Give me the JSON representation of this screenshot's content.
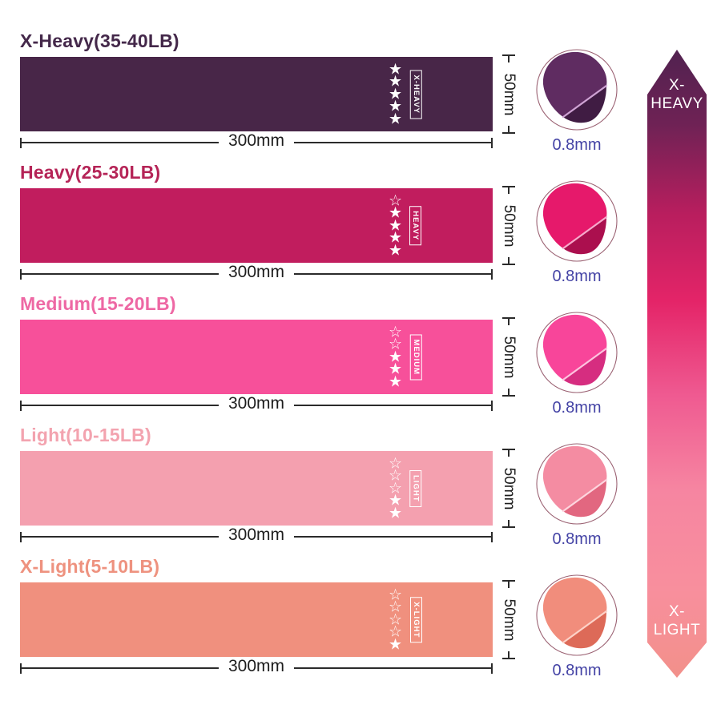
{
  "figure": {
    "background": "#ffffff",
    "dimension_label": "300mm",
    "height_label": "50mm",
    "thickness_label": "0.8mm",
    "line_color": "#2b2b2b",
    "thickness_label_color": "#4443a5"
  },
  "rows": [
    {
      "title": "X-Heavy(35-40LB)",
      "tag": "X-HEAVY",
      "stars_filled": 5,
      "stars_total": 5,
      "band_color": "#482648",
      "title_color": "#44284a",
      "circle": {
        "main": "#5f2c61",
        "shadow": "#401c43",
        "edge": "#cfa3d4"
      }
    },
    {
      "title": "Heavy(25-30LB)",
      "tag": "HEAVY",
      "stars_filled": 4,
      "stars_total": 5,
      "band_color": "#c11d5e",
      "title_color": "#b52457",
      "circle": {
        "main": "#e6196b",
        "shadow": "#ab0f4e",
        "edge": "#f6aacb"
      }
    },
    {
      "title": "Medium(15-20LB)",
      "tag": "MEDIUM",
      "stars_filled": 3,
      "stars_total": 5,
      "band_color": "#f7509a",
      "title_color": "#ee68a4",
      "circle": {
        "main": "#f8459a",
        "shadow": "#d62d80",
        "edge": "#fdc3de"
      }
    },
    {
      "title": "Light(10-15LB)",
      "tag": "LIGHT",
      "stars_filled": 2,
      "stars_total": 5,
      "band_color": "#f4a0af",
      "title_color": "#f3a3af",
      "circle": {
        "main": "#f48ca2",
        "shadow": "#e26780",
        "edge": "#fdd5de"
      }
    },
    {
      "title": "X-Light(5-10LB)",
      "tag": "X-LIGHT",
      "stars_filled": 1,
      "stars_total": 5,
      "band_color": "#f0907e",
      "title_color": "#ee927f",
      "circle": {
        "main": "#f18d7c",
        "shadow": "#dd6a58",
        "edge": "#fdd2c8"
      }
    }
  ],
  "arrow": {
    "top_label_lines": [
      "X-",
      "HEAVY"
    ],
    "bottom_label_lines": [
      "X-",
      "LIGHT"
    ],
    "gradient": [
      "#512250",
      "#6f2255",
      "#b81e5e",
      "#e42468",
      "#ef5a91",
      "#f685a1",
      "#f88f9d",
      "#f2908a"
    ]
  }
}
